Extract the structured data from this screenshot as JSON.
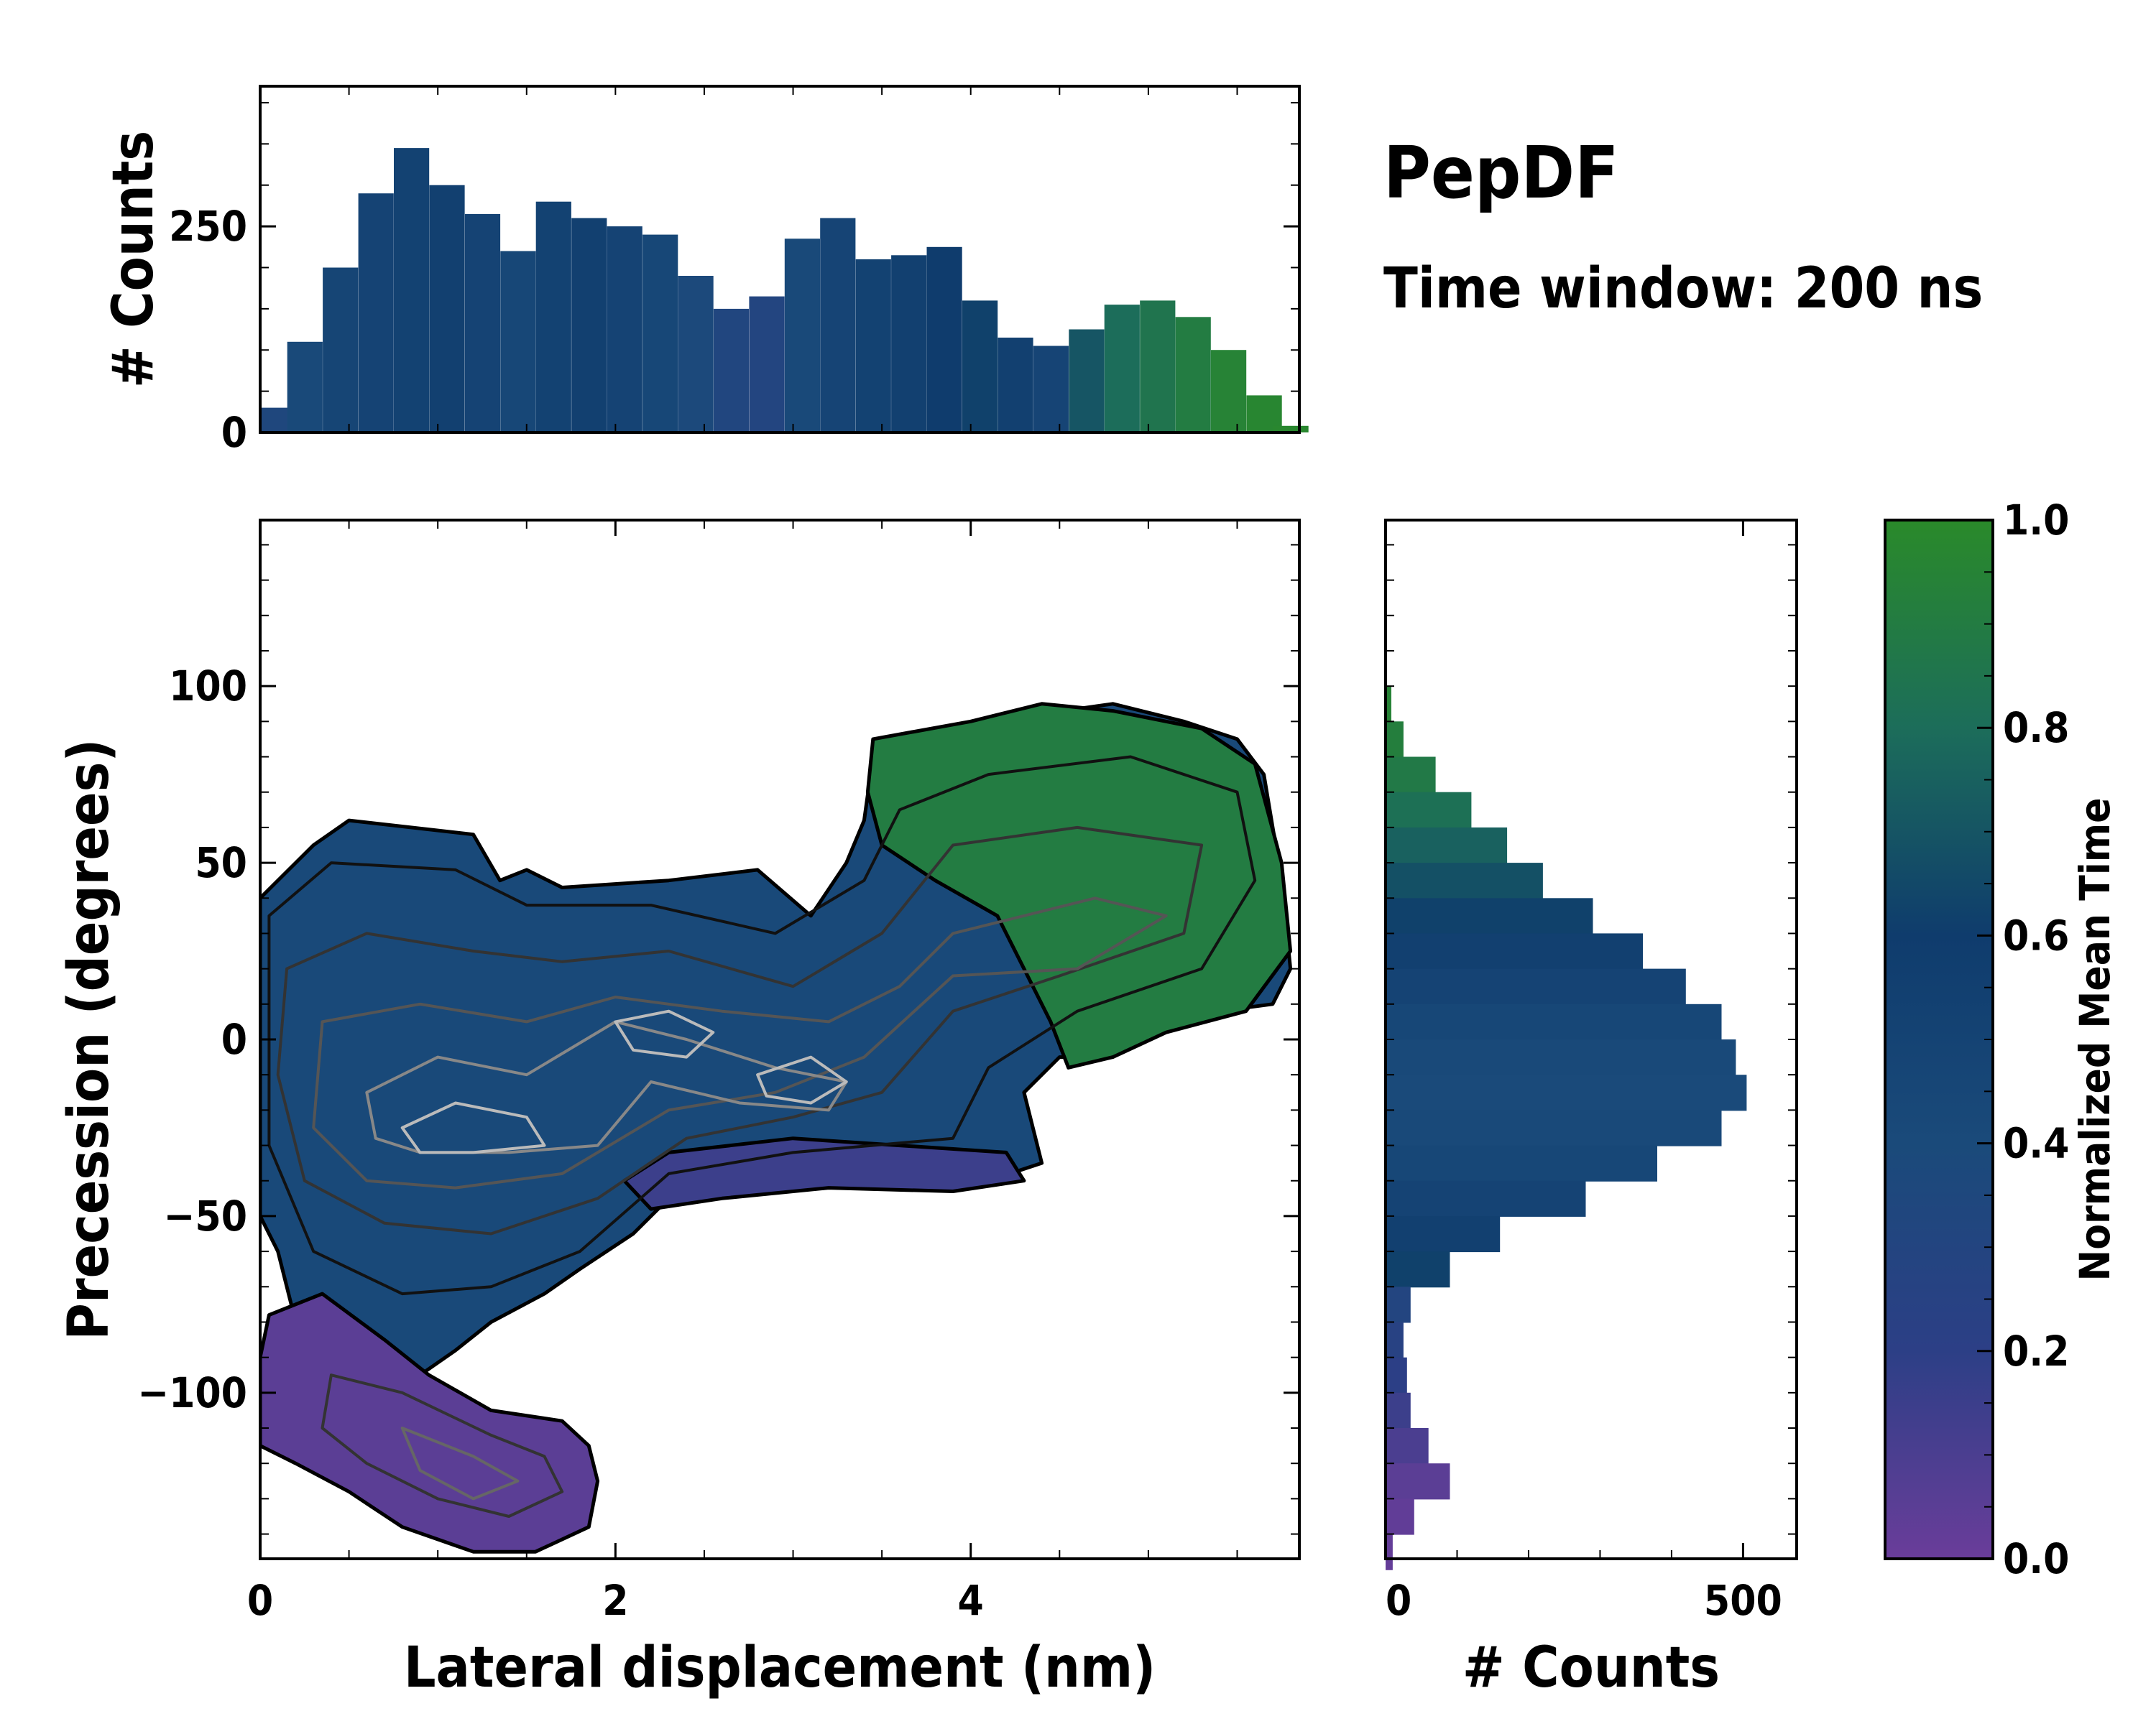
{
  "chart_data": {
    "type": "heatmap",
    "title": "PepDF",
    "subtitle": "Time window: 200 ns",
    "xlabel": "Lateral displacement (nm)",
    "ylabel": "Precession (degrees)",
    "xlim": [
      0,
      5.85
    ],
    "ylim": [
      -147,
      147
    ],
    "x_ticks": [
      {
        "v": 0,
        "label": "0"
      },
      {
        "v": 2,
        "label": "2"
      },
      {
        "v": 4,
        "label": "4"
      }
    ],
    "y_ticks": [
      {
        "v": 100,
        "label": "100"
      },
      {
        "v": 50,
        "label": "50"
      },
      {
        "v": 0,
        "label": "0"
      },
      {
        "v": -50,
        "label": "−50"
      },
      {
        "v": -100,
        "label": "−100"
      }
    ],
    "colormap": {
      "name": "viridis-like",
      "stops": [
        "#6a3d9a",
        "#2c3f86",
        "#1a4a7a",
        "#0f3c6d",
        "#1c6d5a",
        "#2a8a2a"
      ]
    },
    "colorbar": {
      "label": "Normalized Mean Time",
      "ticks": [
        "0.0",
        "0.2",
        "0.4",
        "0.6",
        "0.8",
        "1.0"
      ],
      "range": [
        0,
        1
      ]
    },
    "top_hist": {
      "ylabel": "# Counts",
      "y_ticks": [
        {
          "v": 0,
          "label": "0"
        },
        {
          "v": 250,
          "label": "250"
        }
      ],
      "ylim": [
        0,
        420
      ],
      "x": [
        0.05,
        0.25,
        0.45,
        0.65,
        0.85,
        1.05,
        1.25,
        1.45,
        1.65,
        1.85,
        2.05,
        2.25,
        2.45,
        2.65,
        2.85,
        3.05,
        3.25,
        3.45,
        3.65,
        3.85,
        4.05,
        4.25,
        4.45,
        4.65,
        4.85,
        5.05,
        5.25,
        5.45,
        5.65,
        5.8
      ],
      "counts": [
        30,
        110,
        200,
        290,
        345,
        300,
        265,
        220,
        280,
        260,
        250,
        240,
        190,
        150,
        165,
        235,
        260,
        210,
        215,
        225,
        160,
        115,
        105,
        125,
        155,
        160,
        140,
        100,
        45,
        8
      ],
      "norm_time": [
        0.35,
        0.42,
        0.47,
        0.5,
        0.52,
        0.55,
        0.5,
        0.45,
        0.52,
        0.55,
        0.5,
        0.45,
        0.38,
        0.32,
        0.3,
        0.42,
        0.48,
        0.52,
        0.55,
        0.6,
        0.62,
        0.55,
        0.48,
        0.7,
        0.8,
        0.85,
        0.9,
        0.95,
        0.97,
        0.98
      ]
    },
    "right_hist": {
      "xlabel": "# Counts",
      "x_ticks": [
        {
          "v": 0,
          "label": "0"
        },
        {
          "v": 500,
          "label": "500"
        }
      ],
      "xlim": [
        0,
        575
      ],
      "y": [
        95,
        85,
        75,
        65,
        55,
        45,
        35,
        25,
        15,
        5,
        -5,
        -15,
        -25,
        -35,
        -45,
        -55,
        -65,
        -75,
        -85,
        -95,
        -105,
        -115,
        -125,
        -135,
        -145
      ],
      "counts": [
        8,
        25,
        70,
        120,
        170,
        220,
        290,
        360,
        420,
        470,
        490,
        505,
        470,
        380,
        280,
        160,
        90,
        35,
        25,
        30,
        35,
        60,
        90,
        40,
        10
      ],
      "norm_time": [
        0.95,
        0.92,
        0.88,
        0.82,
        0.75,
        0.68,
        0.62,
        0.55,
        0.5,
        0.45,
        0.42,
        0.4,
        0.42,
        0.45,
        0.5,
        0.55,
        0.62,
        0.3,
        0.25,
        0.2,
        0.15,
        0.1,
        0.05,
        0.03,
        0.02
      ]
    },
    "regions": [
      {
        "name": "main-basin",
        "norm_time": 0.42,
        "polygon": [
          [
            0.0,
            40
          ],
          [
            0.3,
            55
          ],
          [
            0.5,
            62
          ],
          [
            1.2,
            58
          ],
          [
            1.35,
            45
          ],
          [
            1.5,
            48
          ],
          [
            1.7,
            43
          ],
          [
            2.3,
            45
          ],
          [
            2.8,
            48
          ],
          [
            3.1,
            35
          ],
          [
            3.3,
            50
          ],
          [
            3.4,
            62
          ],
          [
            3.45,
            80
          ],
          [
            4.1,
            90
          ],
          [
            4.8,
            95
          ],
          [
            5.2,
            90
          ],
          [
            5.5,
            85
          ],
          [
            5.65,
            75
          ],
          [
            5.75,
            45
          ],
          [
            5.8,
            20
          ],
          [
            5.7,
            10
          ],
          [
            5.4,
            8
          ],
          [
            4.7,
            -5
          ],
          [
            4.5,
            -5
          ],
          [
            4.3,
            -15
          ],
          [
            4.4,
            -35
          ],
          [
            4.1,
            -40
          ],
          [
            3.5,
            -38
          ],
          [
            2.8,
            -42
          ],
          [
            2.3,
            -45
          ],
          [
            2.1,
            -55
          ],
          [
            1.8,
            -65
          ],
          [
            1.6,
            -72
          ],
          [
            1.3,
            -80
          ],
          [
            1.1,
            -88
          ],
          [
            0.9,
            -95
          ],
          [
            0.5,
            -100
          ],
          [
            0.25,
            -90
          ],
          [
            0.1,
            -60
          ],
          [
            0.0,
            -50
          ]
        ]
      },
      {
        "name": "lower-basin",
        "norm_time": 0.05,
        "polygon": [
          [
            0.05,
            -78
          ],
          [
            0.35,
            -72
          ],
          [
            0.7,
            -85
          ],
          [
            0.95,
            -95
          ],
          [
            1.3,
            -105
          ],
          [
            1.7,
            -108
          ],
          [
            1.85,
            -115
          ],
          [
            1.9,
            -125
          ],
          [
            1.85,
            -138
          ],
          [
            1.55,
            -145
          ],
          [
            1.2,
            -145
          ],
          [
            0.8,
            -138
          ],
          [
            0.5,
            -128
          ],
          [
            0.2,
            -120
          ],
          [
            0.0,
            -115
          ],
          [
            0.0,
            -90
          ]
        ]
      },
      {
        "name": "green-basin",
        "norm_time": 0.9,
        "polygon": [
          [
            3.45,
            85
          ],
          [
            4.0,
            90
          ],
          [
            4.4,
            95
          ],
          [
            4.8,
            93
          ],
          [
            5.3,
            88
          ],
          [
            5.6,
            78
          ],
          [
            5.75,
            50
          ],
          [
            5.8,
            25
          ],
          [
            5.55,
            8
          ],
          [
            5.1,
            2
          ],
          [
            4.8,
            -5
          ],
          [
            4.55,
            -8
          ],
          [
            4.45,
            5
          ],
          [
            4.3,
            20
          ],
          [
            4.15,
            35
          ],
          [
            3.8,
            45
          ],
          [
            3.5,
            55
          ],
          [
            3.42,
            70
          ]
        ]
      },
      {
        "name": "purple-strip",
        "norm_time": 0.15,
        "polygon": [
          [
            2.3,
            -32
          ],
          [
            3.0,
            -28
          ],
          [
            3.6,
            -30
          ],
          [
            4.2,
            -32
          ],
          [
            4.3,
            -40
          ],
          [
            3.9,
            -43
          ],
          [
            3.2,
            -42
          ],
          [
            2.6,
            -45
          ],
          [
            2.2,
            -48
          ],
          [
            2.05,
            -40
          ]
        ]
      }
    ],
    "contours": [
      {
        "level": 1,
        "color": "#111111",
        "polygon": [
          [
            0.05,
            35
          ],
          [
            0.4,
            50
          ],
          [
            1.1,
            48
          ],
          [
            1.5,
            38
          ],
          [
            2.2,
            38
          ],
          [
            2.9,
            30
          ],
          [
            3.4,
            45
          ],
          [
            3.6,
            65
          ],
          [
            4.1,
            75
          ],
          [
            4.9,
            80
          ],
          [
            5.5,
            70
          ],
          [
            5.6,
            45
          ],
          [
            5.3,
            20
          ],
          [
            4.6,
            8
          ],
          [
            4.1,
            -8
          ],
          [
            3.9,
            -28
          ],
          [
            3.0,
            -32
          ],
          [
            2.3,
            -38
          ],
          [
            1.8,
            -60
          ],
          [
            1.3,
            -70
          ],
          [
            0.8,
            -72
          ],
          [
            0.3,
            -60
          ],
          [
            0.05,
            -30
          ]
        ]
      },
      {
        "level": 2,
        "color": "#333333",
        "polygon": [
          [
            0.15,
            20
          ],
          [
            0.6,
            30
          ],
          [
            1.2,
            25
          ],
          [
            1.7,
            22
          ],
          [
            2.3,
            25
          ],
          [
            3.0,
            15
          ],
          [
            3.5,
            30
          ],
          [
            3.9,
            55
          ],
          [
            4.6,
            60
          ],
          [
            5.3,
            55
          ],
          [
            5.2,
            30
          ],
          [
            4.5,
            18
          ],
          [
            3.9,
            8
          ],
          [
            3.5,
            -15
          ],
          [
            3.0,
            -22
          ],
          [
            2.4,
            -28
          ],
          [
            1.9,
            -45
          ],
          [
            1.3,
            -55
          ],
          [
            0.7,
            -52
          ],
          [
            0.25,
            -40
          ],
          [
            0.1,
            -10
          ]
        ]
      },
      {
        "level": 3,
        "color": "#555555",
        "polygon": [
          [
            0.35,
            5
          ],
          [
            0.9,
            10
          ],
          [
            1.5,
            5
          ],
          [
            2.0,
            12
          ],
          [
            2.6,
            8
          ],
          [
            3.2,
            5
          ],
          [
            3.6,
            15
          ],
          [
            3.9,
            30
          ],
          [
            4.7,
            40
          ],
          [
            5.1,
            35
          ],
          [
            4.6,
            20
          ],
          [
            3.9,
            18
          ],
          [
            3.4,
            -5
          ],
          [
            2.9,
            -15
          ],
          [
            2.3,
            -20
          ],
          [
            1.7,
            -38
          ],
          [
            1.1,
            -42
          ],
          [
            0.6,
            -40
          ],
          [
            0.3,
            -25
          ]
        ]
      },
      {
        "level": 4,
        "color": "#888888",
        "polygon": [
          [
            0.6,
            -15
          ],
          [
            1.0,
            -5
          ],
          [
            1.5,
            -10
          ],
          [
            2.0,
            5
          ],
          [
            2.4,
            0
          ],
          [
            2.9,
            -8
          ],
          [
            3.3,
            -12
          ],
          [
            3.2,
            -20
          ],
          [
            2.7,
            -18
          ],
          [
            2.2,
            -12
          ],
          [
            1.9,
            -30
          ],
          [
            1.4,
            -32
          ],
          [
            0.9,
            -32
          ],
          [
            0.65,
            -28
          ]
        ]
      },
      {
        "level": 5,
        "color": "#bbbbbb",
        "polygon": [
          [
            0.8,
            -25
          ],
          [
            1.1,
            -18
          ],
          [
            1.5,
            -22
          ],
          [
            1.6,
            -30
          ],
          [
            1.2,
            -32
          ],
          [
            0.9,
            -32
          ]
        ]
      },
      {
        "level": 5,
        "color": "#bbbbbb",
        "polygon": [
          [
            2.0,
            5
          ],
          [
            2.3,
            8
          ],
          [
            2.55,
            2
          ],
          [
            2.4,
            -5
          ],
          [
            2.1,
            -3
          ]
        ]
      },
      {
        "level": 5,
        "color": "#bbbbbb",
        "polygon": [
          [
            2.8,
            -10
          ],
          [
            3.1,
            -5
          ],
          [
            3.3,
            -12
          ],
          [
            3.1,
            -18
          ],
          [
            2.85,
            -16
          ]
        ]
      },
      {
        "level": 2,
        "color": "#333333",
        "polygon": [
          [
            0.4,
            -95
          ],
          [
            0.8,
            -100
          ],
          [
            1.3,
            -112
          ],
          [
            1.6,
            -118
          ],
          [
            1.7,
            -128
          ],
          [
            1.4,
            -135
          ],
          [
            1.0,
            -130
          ],
          [
            0.6,
            -120
          ],
          [
            0.35,
            -110
          ]
        ]
      },
      {
        "level": 3,
        "color": "#666666",
        "polygon": [
          [
            0.8,
            -110
          ],
          [
            1.2,
            -118
          ],
          [
            1.45,
            -125
          ],
          [
            1.2,
            -130
          ],
          [
            0.9,
            -122
          ]
        ]
      }
    ]
  }
}
